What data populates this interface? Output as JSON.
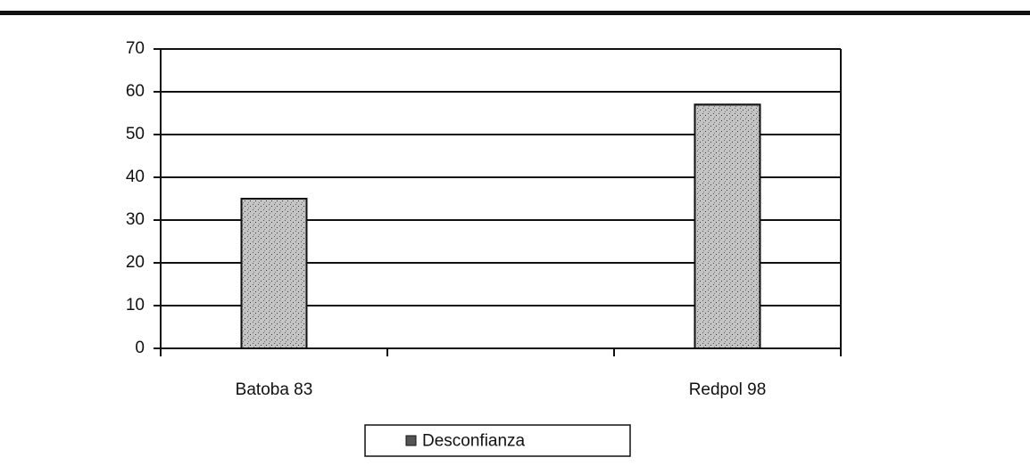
{
  "chart_data": {
    "type": "bar",
    "categories": [
      "Batoba 83",
      null,
      "Redpol 98"
    ],
    "series": [
      {
        "name": "Desconfianza",
        "color": "#c4c4c4",
        "values": [
          35,
          null,
          57
        ]
      }
    ],
    "ylim": [
      0,
      70
    ],
    "yticks": [
      0,
      10,
      20,
      30,
      40,
      50,
      60,
      70
    ],
    "grid": true,
    "legend": "bottom"
  }
}
